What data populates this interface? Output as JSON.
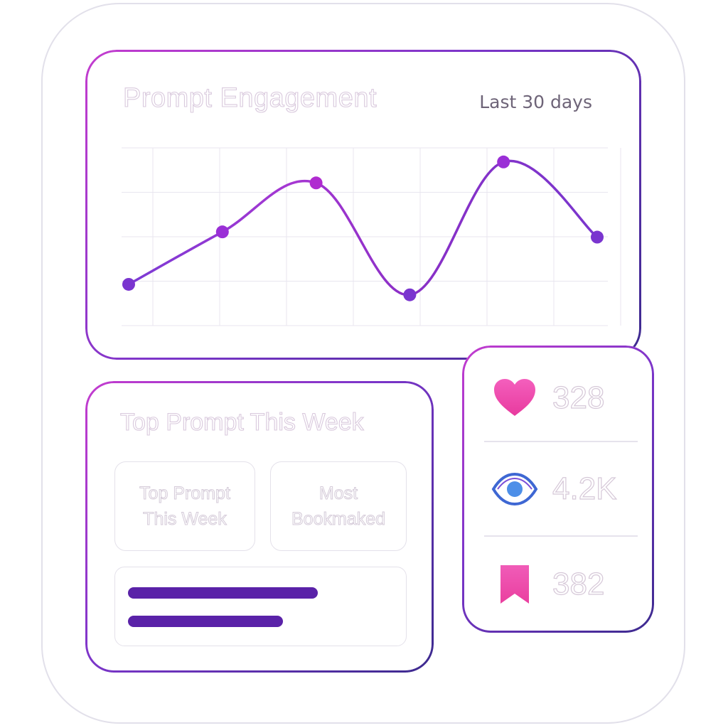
{
  "engagement": {
    "title": "Prompt Engagement",
    "range_label": "Last 30 days"
  },
  "chart_data": {
    "type": "line",
    "title": "Prompt Engagement",
    "xlabel": "",
    "ylabel": "",
    "grid": true,
    "legend": "none",
    "x": [
      1,
      2,
      3,
      4,
      5,
      6
    ],
    "ylim": [
      0,
      100
    ],
    "series": [
      {
        "values": [
          24,
          54,
          82,
          18,
          94,
          51
        ],
        "color": "#8a34d6"
      }
    ],
    "point_colors": [
      "#7a35cf",
      "#9a2fd6",
      "#b02bd0",
      "#7a35cf",
      "#9a2fd6",
      "#7a35cf"
    ]
  },
  "top_prompt": {
    "title": "Top Prompt This Week",
    "tile_left": "Top Prompt\nThis Week",
    "tile_right": "Most\nBookmaked",
    "bars": [
      {
        "fraction": 0.65,
        "color": "#5a22a8"
      },
      {
        "fraction": 0.53,
        "color": "#5a22a8"
      }
    ]
  },
  "stats": {
    "likes": {
      "value": "328",
      "icon": "heart-icon",
      "color": "#f04fb0"
    },
    "views": {
      "value": "4.2K",
      "icon": "eye-icon",
      "color": "#4a6fd8"
    },
    "bookmarks": {
      "value": "382",
      "icon": "bookmark-icon",
      "color": "#f04fb0"
    }
  },
  "colors": {
    "accent_purple": "#7b35c9",
    "accent_pink": "#c43ccf",
    "deep_indigo": "#3c2a8e"
  }
}
